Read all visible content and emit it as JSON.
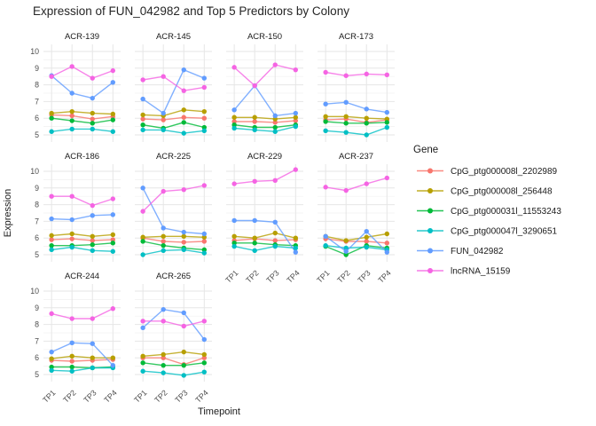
{
  "title": "Expression of FUN_042982 and Top 5 Predictors by Colony",
  "chart_data": {
    "type": "line",
    "title": "Expression of FUN_042982 and Top 5 Predictors by Colony",
    "xlabel": "Timepoint",
    "ylabel": "Expression",
    "x_categories": [
      "TP1",
      "TP2",
      "TP3",
      "TP4"
    ],
    "yticks": [
      5,
      6,
      7,
      8,
      9,
      10
    ],
    "yticks_minor": [
      5.5,
      6.5,
      7.5,
      8.5,
      9.5
    ],
    "ylim": [
      4.6,
      10.4
    ],
    "grid": "on",
    "legend_title": "Gene",
    "legend_position": "right",
    "colors": {
      "grid_major": "#E6E6E6",
      "grid_minor": "#F0F0F0",
      "tick_label": "#4D4D4D",
      "strip_label": "#1A1A1A",
      "axis_title": "#1A1A1A"
    },
    "series": [
      {
        "name": "CpG_ptg000008l_2202989",
        "color": "#F8766D"
      },
      {
        "name": "CpG_ptg000008l_256448",
        "color": "#B79F00"
      },
      {
        "name": "CpG_ptg000031l_11553243",
        "color": "#00BA38"
      },
      {
        "name": "CpG_ptg000047l_3290651",
        "color": "#00BFC4"
      },
      {
        "name": "FUN_042982",
        "color": "#619CFF"
      },
      {
        "name": "lncRNA_15159",
        "color": "#F564E3"
      }
    ],
    "facets": [
      {
        "label": "ACR-139",
        "values": [
          [
            6.2,
            6.15,
            5.95,
            6.1
          ],
          [
            6.3,
            6.4,
            6.3,
            6.25
          ],
          [
            6.0,
            5.85,
            5.7,
            5.9
          ],
          [
            5.2,
            5.35,
            5.35,
            5.2
          ],
          [
            8.55,
            7.5,
            7.2,
            8.15
          ],
          [
            8.5,
            9.1,
            8.4,
            8.85
          ]
        ]
      },
      {
        "label": "ACR-145",
        "values": [
          [
            5.95,
            5.9,
            6.05,
            6.0
          ],
          [
            6.2,
            6.15,
            6.5,
            6.4
          ],
          [
            5.6,
            5.4,
            5.75,
            5.45
          ],
          [
            5.3,
            5.3,
            5.1,
            5.25
          ],
          [
            7.15,
            6.3,
            8.9,
            8.4
          ],
          [
            8.3,
            8.5,
            7.65,
            7.85
          ]
        ]
      },
      {
        "label": "ACR-150",
        "values": [
          [
            5.8,
            5.8,
            5.75,
            5.85
          ],
          [
            6.05,
            6.05,
            5.95,
            6.05
          ],
          [
            5.6,
            5.45,
            5.45,
            5.6
          ],
          [
            5.4,
            5.3,
            5.2,
            5.5
          ],
          [
            6.5,
            7.95,
            6.15,
            6.3
          ],
          [
            9.05,
            7.95,
            9.2,
            8.9
          ]
        ]
      },
      {
        "label": "ACR-173",
        "values": [
          [
            5.9,
            5.95,
            5.75,
            5.9
          ],
          [
            6.1,
            6.1,
            6.0,
            5.95
          ],
          [
            5.8,
            5.7,
            5.7,
            5.75
          ],
          [
            5.25,
            5.15,
            5.0,
            5.45
          ],
          [
            6.85,
            6.95,
            6.55,
            6.35
          ],
          [
            8.75,
            8.55,
            8.65,
            8.6
          ]
        ]
      },
      {
        "label": "ACR-186",
        "values": [
          [
            5.9,
            5.95,
            5.85,
            5.9
          ],
          [
            6.15,
            6.25,
            6.1,
            6.2
          ],
          [
            5.55,
            5.55,
            5.6,
            5.7
          ],
          [
            5.3,
            5.45,
            5.25,
            5.2
          ],
          [
            7.15,
            7.1,
            7.35,
            7.4
          ],
          [
            8.5,
            8.5,
            7.95,
            8.35
          ]
        ]
      },
      {
        "label": "ACR-225",
        "values": [
          [
            6.0,
            5.8,
            5.75,
            5.8
          ],
          [
            6.05,
            6.1,
            6.1,
            6.05
          ],
          [
            5.8,
            5.55,
            5.4,
            5.3
          ],
          [
            5.0,
            5.25,
            5.3,
            5.1
          ],
          [
            9.0,
            6.6,
            6.35,
            6.25
          ],
          [
            7.6,
            8.8,
            8.9,
            9.15
          ]
        ]
      },
      {
        "label": "ACR-229",
        "values": [
          [
            5.85,
            5.95,
            5.85,
            5.9
          ],
          [
            6.1,
            6.0,
            6.3,
            6.0
          ],
          [
            5.7,
            5.7,
            5.6,
            5.55
          ],
          [
            5.5,
            5.25,
            5.5,
            5.4
          ],
          [
            7.05,
            7.05,
            6.95,
            5.15
          ],
          [
            9.25,
            9.4,
            9.45,
            10.1
          ]
        ]
      },
      {
        "label": "ACR-237",
        "values": [
          [
            5.95,
            5.8,
            5.8,
            5.7
          ],
          [
            6.1,
            5.85,
            6.05,
            6.25
          ],
          [
            5.5,
            5.0,
            5.55,
            5.4
          ],
          [
            5.55,
            5.4,
            5.45,
            5.3
          ],
          [
            6.1,
            5.2,
            6.4,
            5.15
          ],
          [
            9.05,
            8.85,
            9.25,
            9.6
          ]
        ]
      },
      {
        "label": "ACR-244",
        "values": [
          [
            5.85,
            5.8,
            5.85,
            5.9
          ],
          [
            5.95,
            6.1,
            6.0,
            6.0
          ],
          [
            5.45,
            5.45,
            5.4,
            5.45
          ],
          [
            5.25,
            5.2,
            5.4,
            5.4
          ],
          [
            6.35,
            6.9,
            6.85,
            5.55
          ],
          [
            8.65,
            8.35,
            8.35,
            8.95
          ]
        ]
      },
      {
        "label": "ACR-265",
        "values": [
          [
            6.0,
            6.0,
            5.6,
            6.0
          ],
          [
            6.1,
            6.2,
            6.35,
            6.2
          ],
          [
            5.7,
            5.55,
            5.55,
            5.7
          ],
          [
            5.2,
            5.1,
            4.95,
            5.15
          ],
          [
            7.8,
            8.9,
            8.7,
            7.1
          ],
          [
            8.2,
            8.2,
            7.9,
            8.2
          ]
        ]
      }
    ]
  }
}
